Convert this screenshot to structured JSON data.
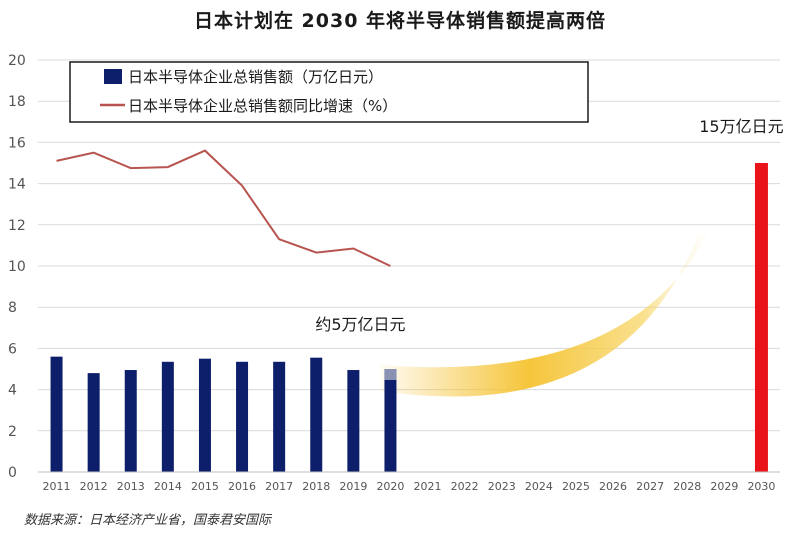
{
  "title": "日本计划在 2030 年将半导体销售额提高两倍",
  "source": "数据来源：日本经济产业省，国泰君安国际",
  "colors": {
    "bar": "#0d1f6b",
    "bar_faded": "#8a92b4",
    "line": "#b85450",
    "target_bar": "#e8141a",
    "arrow": "#f5c230",
    "grid": "#d9d9d9"
  },
  "chart_data": {
    "type": "bar",
    "title": "日本计划在 2030 年将半导体销售额提高两倍",
    "categories": [
      "2011",
      "2012",
      "2013",
      "2014",
      "2015",
      "2016",
      "2017",
      "2018",
      "2019",
      "2020",
      "2021",
      "2022",
      "2023",
      "2024",
      "2025",
      "2026",
      "2027",
      "2028",
      "2029",
      "2030"
    ],
    "ylim": [
      0,
      20
    ],
    "yticks": [
      0,
      2,
      4,
      6,
      8,
      10,
      12,
      14,
      16,
      18,
      20
    ],
    "grid": true,
    "legend_position": "top-left",
    "series": [
      {
        "name": "日本半导体企业总销售额（万亿日元）",
        "type": "bar",
        "values": [
          5.6,
          4.8,
          4.95,
          5.35,
          5.5,
          5.35,
          5.35,
          5.55,
          4.95,
          5.0,
          null,
          null,
          null,
          null,
          null,
          null,
          null,
          null,
          null,
          15.0
        ]
      },
      {
        "name": "日本半导体企业总销售额同比增速（%）",
        "type": "line",
        "values": [
          15.1,
          15.5,
          14.75,
          14.8,
          15.6,
          13.9,
          11.3,
          10.65,
          10.85,
          10.0,
          null,
          null,
          null,
          null,
          null,
          null,
          null,
          null,
          null,
          null
        ]
      }
    ],
    "annotations": [
      {
        "text": "约5万亿日元",
        "category": "2020"
      },
      {
        "text": "15万亿日元",
        "category": "2030"
      }
    ]
  }
}
